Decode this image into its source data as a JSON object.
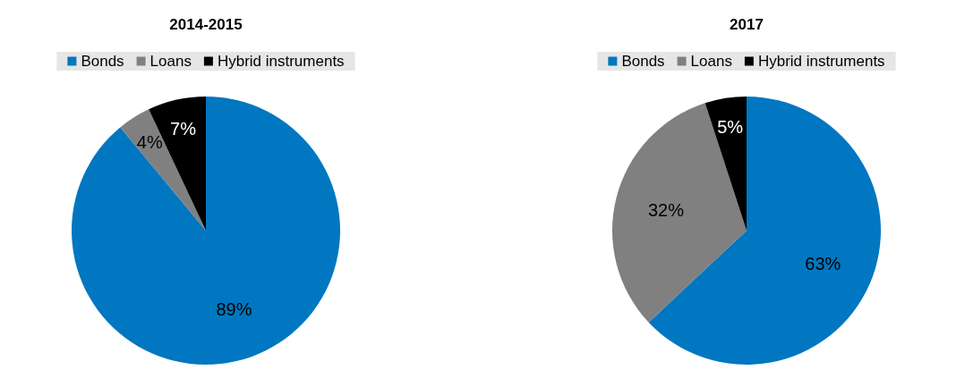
{
  "chart_data": [
    {
      "type": "pie",
      "title": "2014-2015",
      "categories": [
        "Bonds",
        "Loans",
        "Hybrid instruments"
      ],
      "values": [
        89,
        4,
        7
      ],
      "value_labels": [
        "89%",
        "4%",
        "7%"
      ],
      "colors": [
        "#0077c0",
        "#808080",
        "#000000"
      ],
      "legend": "top"
    },
    {
      "type": "pie",
      "title": "2017",
      "categories": [
        "Bonds",
        "Loans",
        "Hybrid instruments"
      ],
      "values": [
        63,
        32,
        5
      ],
      "value_labels": [
        "63%",
        "32%",
        "5%"
      ],
      "colors": [
        "#0077c0",
        "#808080",
        "#000000"
      ],
      "legend": "top"
    }
  ]
}
